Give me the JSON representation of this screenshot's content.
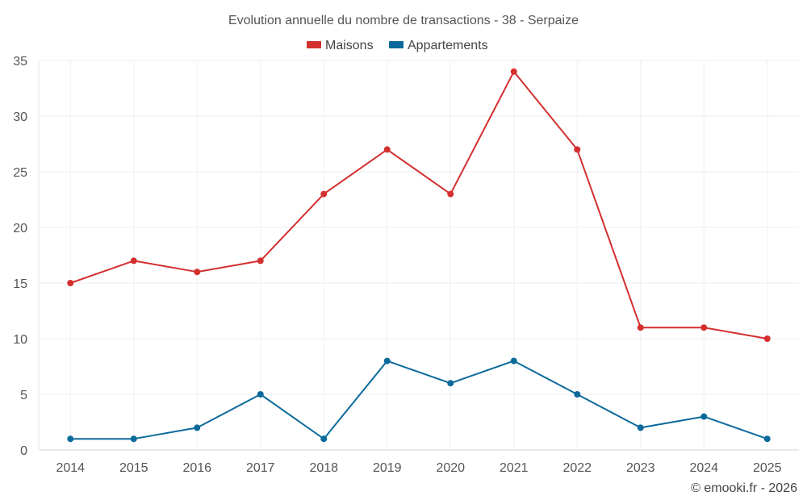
{
  "chart_data": {
    "type": "line",
    "title": "Evolution annuelle du nombre de transactions - 38 - Serpaize",
    "categories": [
      "2014",
      "2015",
      "2016",
      "2017",
      "2018",
      "2019",
      "2020",
      "2021",
      "2022",
      "2023",
      "2024",
      "2025"
    ],
    "yticks": [
      "0",
      "5",
      "10",
      "15",
      "20",
      "25",
      "30",
      "35"
    ],
    "ylim": [
      0,
      35
    ],
    "grid": true,
    "legend_position": "top",
    "series": [
      {
        "name": "Maisons",
        "color": "#d32f2f",
        "values": [
          15,
          17,
          16,
          17,
          23,
          27,
          23,
          34,
          27,
          11,
          11,
          10
        ]
      },
      {
        "name": "Appartements",
        "color": "#0b6a9b",
        "values": [
          1,
          1,
          2,
          5,
          1,
          8,
          6,
          8,
          5,
          2,
          3,
          1
        ]
      }
    ]
  },
  "credit": "© emooki.fr - 2026"
}
